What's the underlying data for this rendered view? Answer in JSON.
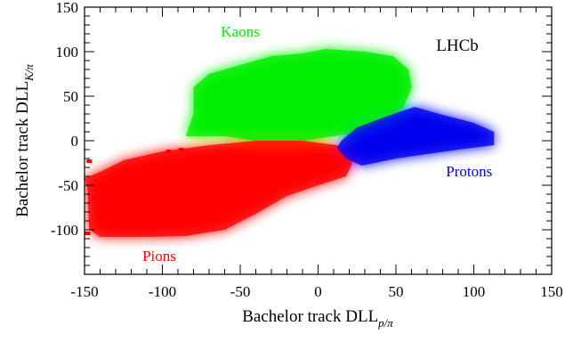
{
  "chart_data": {
    "type": "heatmap",
    "title": "",
    "experiment_label": "LHCb",
    "xlabel": {
      "main": "Bachelor track DLL",
      "sub": "p/π"
    },
    "ylabel": {
      "main": "Bachelor track DLL",
      "sub": "K/π"
    },
    "xlim": [
      -150,
      150
    ],
    "ylim": [
      -150,
      150
    ],
    "x_ticks": [
      -150,
      -100,
      -50,
      0,
      50,
      100,
      150
    ],
    "y_ticks": [
      -100,
      -50,
      0,
      50,
      100,
      150
    ],
    "x_tick_labels": [
      "-150",
      "-100",
      "-50",
      "0",
      "50",
      "100",
      "150"
    ],
    "y_tick_labels": [
      "-100",
      "-50",
      "0",
      "50",
      "100",
      "150"
    ],
    "grid": false,
    "colors": {
      "kaons": "#00ee00",
      "pions": "#ff0000",
      "protons": "#0000ee"
    },
    "regions": [
      {
        "name": "Kaons",
        "label": "Kaons",
        "color": "#00ee00",
        "polygon": [
          [
            -80,
            30
          ],
          [
            -80,
            60
          ],
          [
            -70,
            75
          ],
          [
            -50,
            85
          ],
          [
            -30,
            95
          ],
          [
            -10,
            98
          ],
          [
            5,
            103
          ],
          [
            30,
            100
          ],
          [
            48,
            95
          ],
          [
            58,
            80
          ],
          [
            60,
            60
          ],
          [
            55,
            38
          ],
          [
            45,
            25
          ],
          [
            30,
            12
          ],
          [
            10,
            5
          ],
          [
            -10,
            0
          ],
          [
            -40,
            0
          ],
          [
            -60,
            5
          ],
          [
            -85,
            5
          ]
        ],
        "label_pos": [
          -50,
          117
        ]
      },
      {
        "name": "Pions",
        "label": "Pions",
        "color": "#ff0000",
        "polygon": [
          [
            -150,
            -42
          ],
          [
            -148,
            -55
          ],
          [
            -147,
            -100
          ],
          [
            -140,
            -108
          ],
          [
            -110,
            -108
          ],
          [
            -85,
            -107
          ],
          [
            -60,
            -100
          ],
          [
            -40,
            -82
          ],
          [
            -20,
            -62
          ],
          [
            0,
            -50
          ],
          [
            18,
            -40
          ],
          [
            22,
            -25
          ],
          [
            12,
            -5
          ],
          [
            -10,
            0
          ],
          [
            -40,
            0
          ],
          [
            -70,
            -5
          ],
          [
            -100,
            -12
          ],
          [
            -125,
            -22
          ],
          [
            -140,
            -35
          ]
        ],
        "label_pos": [
          -102,
          -135
        ]
      },
      {
        "name": "Protons",
        "label": "Protons",
        "color": "#0000ee",
        "polygon": [
          [
            15,
            0
          ],
          [
            25,
            15
          ],
          [
            45,
            28
          ],
          [
            62,
            38
          ],
          [
            78,
            30
          ],
          [
            100,
            20
          ],
          [
            113,
            10
          ],
          [
            113,
            -5
          ],
          [
            90,
            -10
          ],
          [
            70,
            -15
          ],
          [
            50,
            -20
          ],
          [
            28,
            -28
          ],
          [
            18,
            -20
          ],
          [
            12,
            -8
          ]
        ],
        "label_pos": [
          97,
          -40
        ]
      }
    ],
    "isolated_points": [
      [
        -147,
        -23
      ],
      [
        -143,
        -65
      ],
      [
        -148,
        -104
      ],
      [
        -96,
        -12
      ],
      [
        -88,
        -10
      ],
      [
        -60,
        -15
      ]
    ]
  }
}
